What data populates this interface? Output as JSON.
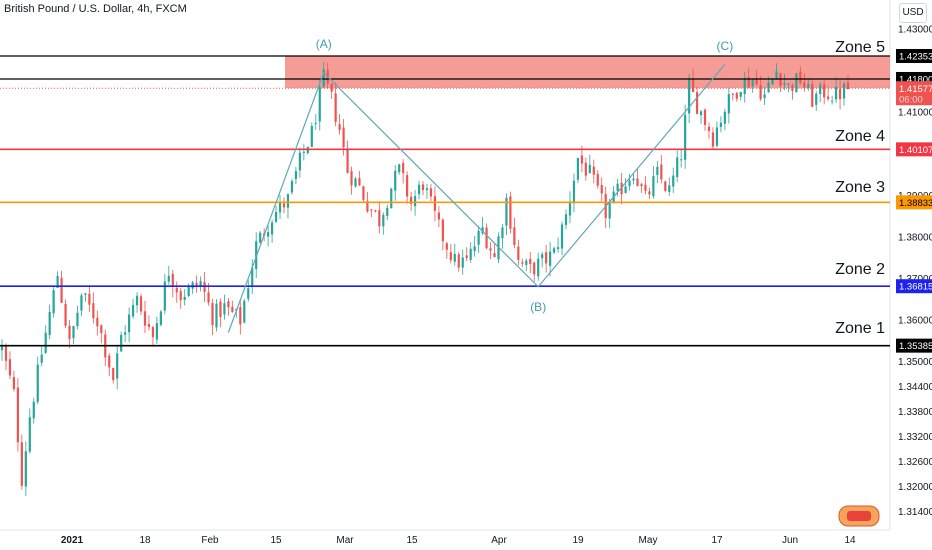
{
  "header": {
    "title": "British Pound / U.S. Dollar, 4h, FXCM",
    "currency_button": "USD"
  },
  "colors": {
    "up": "#26a69a",
    "down": "#ef5350",
    "zone_band": "#f28b82",
    "wave_line": "#5fa8b8",
    "wave_label": "#3d9cb2"
  },
  "chart_data": {
    "type": "candlestick",
    "symbol": "GBPUSD",
    "timeframe": "4h",
    "ylim": [
      1.3095,
      1.437
    ],
    "y_ticks": [
      "1.43000",
      "1.42353",
      "1.41800",
      "1.41577",
      "1.41000",
      "1.40107",
      "1.39000",
      "1.38833",
      "1.38000",
      "1.37000",
      "1.36815",
      "1.36000",
      "1.35385",
      "1.35000",
      "1.34400",
      "1.33800",
      "1.33200",
      "1.32600",
      "1.32000",
      "1.31400"
    ],
    "x_ticks": [
      "2021",
      "18",
      "Feb",
      "15",
      "Mar",
      "15",
      "Apr",
      "19",
      "May",
      "17",
      "Jun",
      "14"
    ],
    "price_path": [
      [
        0,
        1.353
      ],
      [
        3,
        1.342
      ],
      [
        5,
        1.322
      ],
      [
        7,
        1.337
      ],
      [
        10,
        1.352
      ],
      [
        14,
        1.371
      ],
      [
        17,
        1.354
      ],
      [
        20,
        1.366
      ],
      [
        24,
        1.36
      ],
      [
        28,
        1.346
      ],
      [
        30,
        1.356
      ],
      [
        34,
        1.365
      ],
      [
        38,
        1.356
      ],
      [
        42,
        1.372
      ],
      [
        45,
        1.366
      ],
      [
        50,
        1.369
      ],
      [
        53,
        1.361
      ],
      [
        56,
        1.363
      ],
      [
        60,
        1.36
      ],
      [
        64,
        1.378
      ],
      [
        68,
        1.385
      ],
      [
        72,
        1.389
      ],
      [
        75,
        1.398
      ],
      [
        78,
        1.405
      ],
      [
        81,
        1.418
      ],
      [
        83,
        1.413
      ],
      [
        85,
        1.406
      ],
      [
        87,
        1.396
      ],
      [
        90,
        1.392
      ],
      [
        92,
        1.388
      ],
      [
        95,
        1.384
      ],
      [
        98,
        1.392
      ],
      [
        100,
        1.396
      ],
      [
        103,
        1.388
      ],
      [
        106,
        1.393
      ],
      [
        110,
        1.382
      ],
      [
        114,
        1.374
      ],
      [
        117,
        1.374
      ],
      [
        121,
        1.382
      ],
      [
        124,
        1.375
      ],
      [
        127,
        1.389
      ],
      [
        130,
        1.374
      ],
      [
        133,
        1.372
      ],
      [
        136,
        1.374
      ],
      [
        139,
        1.376
      ],
      [
        142,
        1.385
      ],
      [
        145,
        1.399
      ],
      [
        148,
        1.395
      ],
      [
        152,
        1.386
      ],
      [
        156,
        1.392
      ],
      [
        159,
        1.396
      ],
      [
        162,
        1.389
      ],
      [
        165,
        1.395
      ],
      [
        168,
        1.391
      ],
      [
        171,
        1.4
      ],
      [
        173,
        1.416
      ],
      [
        176,
        1.41
      ],
      [
        179,
        1.404
      ],
      [
        182,
        1.411
      ],
      [
        186,
        1.417
      ],
      [
        189,
        1.418
      ],
      [
        192,
        1.414
      ],
      [
        195,
        1.42
      ],
      [
        198,
        1.416
      ],
      [
        201,
        1.418
      ],
      [
        204,
        1.413
      ],
      [
        207,
        1.415
      ],
      [
        210,
        1.414
      ],
      [
        213,
        1.4158
      ]
    ],
    "price_path_note": "x index = 4h candle number from start of 2021",
    "annotations": {
      "zones": [
        {
          "label": "Zone 5",
          "type": "band",
          "from": 1.4158,
          "to": 1.4235,
          "color": "#f28b82"
        },
        {
          "label": "Zone 4",
          "value": 1.40107,
          "color": "#f23645"
        },
        {
          "label": "Zone 3",
          "value": 1.38833,
          "color": "#ff9800"
        },
        {
          "label": "Zone 2",
          "value": 1.36815,
          "color": "#1e22f0"
        },
        {
          "label": "Zone 1",
          "value": 1.35385,
          "color": "#000000"
        }
      ],
      "horizontal_lines": [
        {
          "value": 1.42353,
          "color": "#000000"
        },
        {
          "value": 1.418,
          "color": "#000000"
        }
      ],
      "waves": [
        {
          "label": "(A)",
          "index": 81,
          "value": 1.424
        },
        {
          "label": "(B)",
          "index": 135,
          "value": 1.368
        },
        {
          "label": "(C)",
          "index": 182,
          "value": 1.4235
        }
      ],
      "wave_path": [
        [
          57,
          1.357
        ],
        [
          81,
          1.4195
        ],
        [
          135,
          1.368
        ],
        [
          182,
          1.4215
        ]
      ]
    },
    "price_tags": [
      {
        "text": "1.42353",
        "value": 1.42353,
        "bg": "#000000",
        "fg": "#ffffff"
      },
      {
        "text": "1.41800",
        "value": 1.418,
        "bg": "#000000",
        "fg": "#ffffff"
      },
      {
        "text": "1.41577",
        "value": 1.41577,
        "bg": "#ef5350",
        "fg": "#ffffff",
        "sub": "06:00"
      },
      {
        "text": "1.40107",
        "value": 1.40107,
        "bg": "#f23645",
        "fg": "#ffffff"
      },
      {
        "text": "1.38833",
        "value": 1.38833,
        "bg": "#ff9800",
        "fg": "#000000"
      },
      {
        "text": "1.36815",
        "value": 1.36815,
        "bg": "#1e22f0",
        "fg": "#ffffff"
      },
      {
        "text": "1.35385",
        "value": 1.35385,
        "bg": "#000000",
        "fg": "#ffffff"
      }
    ]
  }
}
